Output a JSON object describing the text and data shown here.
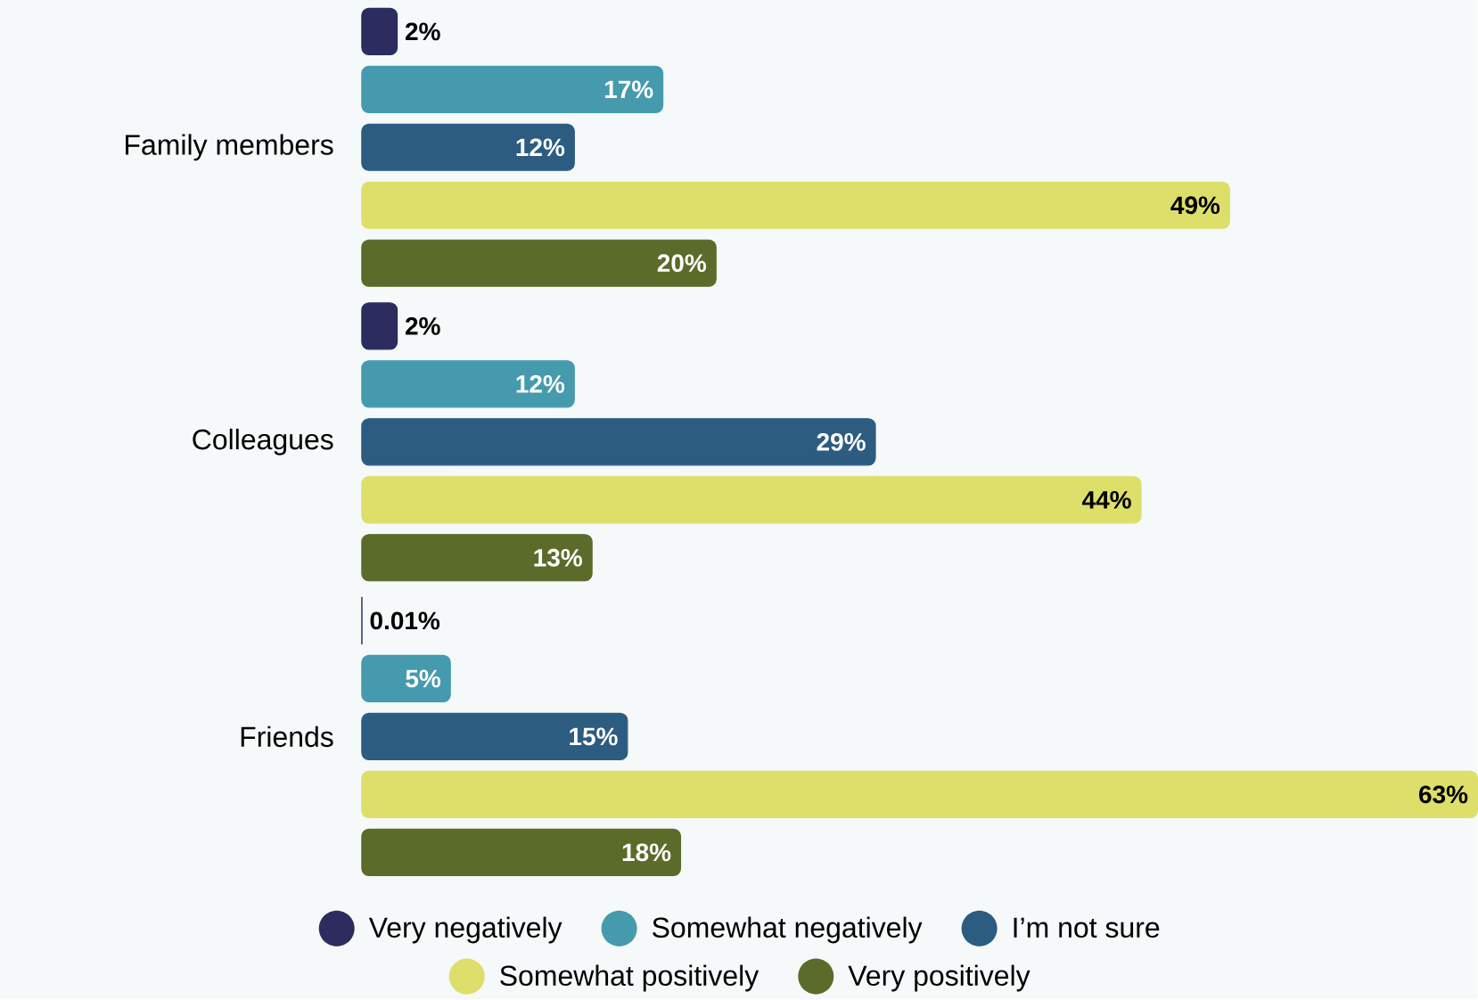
{
  "chart_data": {
    "type": "bar",
    "orientation": "horizontal",
    "data_labels": true,
    "legend": "bottom",
    "categories": [
      "Family members",
      "Colleagues",
      "Friends"
    ],
    "series": [
      {
        "name": "Very negatively",
        "color": "#2b2d5e",
        "values": [
          2,
          2,
          0.01
        ],
        "value_labels": [
          "2%",
          "2%",
          "0.01%"
        ]
      },
      {
        "name": "Somewhat negatively",
        "color": "#469aae",
        "values": [
          17,
          12,
          5
        ],
        "value_labels": [
          "17%",
          "12%",
          "5%"
        ]
      },
      {
        "name": "I’m not sure",
        "color": "#2c5c80",
        "values": [
          12,
          29,
          15
        ],
        "value_labels": [
          "12%",
          "29%",
          "15%"
        ]
      },
      {
        "name": "Somewhat positively",
        "color": "#dede6a",
        "values": [
          49,
          44,
          63
        ],
        "value_labels": [
          "49%",
          "44%",
          "63%"
        ]
      },
      {
        "name": "Very positively",
        "color": "#5b6b2a",
        "values": [
          20,
          13,
          18
        ],
        "value_labels": [
          "20%",
          "13%",
          "18%"
        ]
      }
    ]
  }
}
